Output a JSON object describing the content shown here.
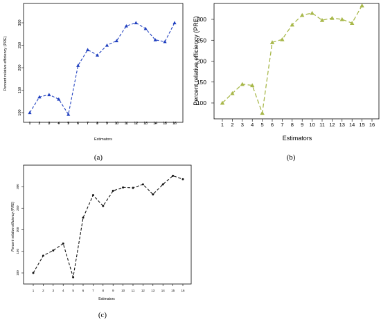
{
  "panel_labels": [
    "(a)",
    "(b)",
    "(c)"
  ],
  "chart_data": [
    {
      "type": "line",
      "title": "",
      "xlabel": "Estimators",
      "ylabel": "Percent relative efficiency (PRE)",
      "x": [
        1,
        2,
        3,
        4,
        5,
        6,
        7,
        8,
        9,
        10,
        11,
        12,
        13,
        14,
        15,
        16
      ],
      "xticks": [
        "1",
        "2",
        "3",
        "4",
        "5",
        "6",
        "7",
        "8",
        "9",
        "10",
        "11",
        "12",
        "13",
        "14",
        "15",
        "16"
      ],
      "yticks": [
        "100",
        "150",
        "200",
        "250",
        "300"
      ],
      "ylim": [
        85,
        325
      ],
      "grid": false,
      "series": [
        {
          "values": [
            100,
            135,
            140,
            130,
            96,
            205,
            240,
            228,
            250,
            260,
            293,
            300,
            287,
            262,
            258,
            300
          ],
          "color": "#1f3fbf",
          "marker": "triangle",
          "dash": "dashed"
        }
      ]
    },
    {
      "type": "line",
      "title": "",
      "xlabel": "Estimators",
      "ylabel": "Percent relative efficiency (PRE)",
      "x": [
        1,
        2,
        3,
        4,
        5,
        6,
        7,
        8,
        9,
        10,
        11,
        12,
        13,
        14,
        15,
        16
      ],
      "xticks": [
        "1",
        "2",
        "3",
        "4",
        "5",
        "6",
        "7",
        "8",
        "9",
        "10",
        "11",
        "12",
        "13",
        "14",
        "15",
        "16"
      ],
      "yticks": [
        "100",
        "150",
        "200",
        "250",
        "300"
      ],
      "ylim": [
        80,
        340
      ],
      "grid": false,
      "series": [
        {
          "values": [
            100,
            123,
            145,
            142,
            76,
            245,
            252,
            287,
            310,
            315,
            298,
            303,
            300,
            291,
            333,
            null
          ],
          "color": "#a8b84a",
          "marker": "triangle",
          "dash": "dashed"
        }
      ]
    },
    {
      "type": "line",
      "title": "",
      "xlabel": "Estimators",
      "ylabel": "Percent relative efficiency (PRE)",
      "x": [
        1,
        2,
        3,
        4,
        5,
        6,
        7,
        8,
        9,
        10,
        11,
        12,
        13,
        14,
        15,
        16
      ],
      "xticks": [
        "1",
        "2",
        "3",
        "4",
        "5",
        "6",
        "7",
        "8",
        "9",
        "10",
        "11",
        "12",
        "13",
        "14",
        "15",
        "16"
      ],
      "yticks": [
        "100",
        "150",
        "200",
        "250",
        "300"
      ],
      "ylim": [
        85,
        340
      ],
      "grid": false,
      "series": [
        {
          "values": [
            100,
            140,
            152,
            168,
            90,
            228,
            280,
            255,
            290,
            298,
            297,
            305,
            282,
            305,
            325,
            317
          ],
          "color": "#111111",
          "marker": "dot",
          "dash": "dashed"
        }
      ]
    }
  ]
}
